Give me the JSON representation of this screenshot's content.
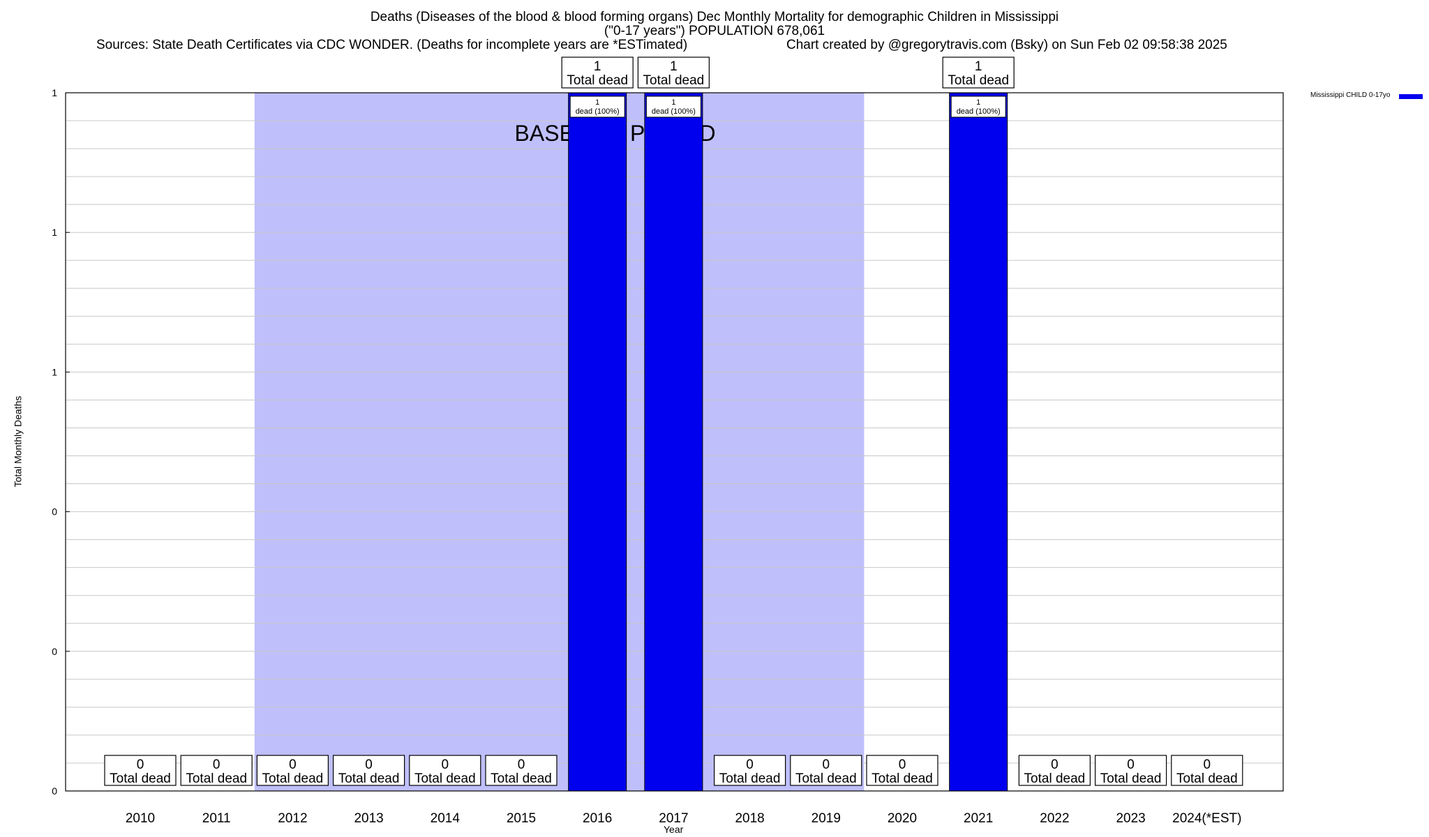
{
  "header": {
    "title_line1": "Deaths (Diseases of the blood & blood forming organs) Dec Monthly Mortality for demographic Children in Mississippi",
    "title_line2": "(\"0-17 years\") POPULATION 678,061",
    "sources": "Sources: State Death Certificates via CDC WONDER. (Deaths for incomplete years are *ESTimated)",
    "credit": "Chart created by @gregorytravis.com (Bsky) on Sun Feb 02 09:58:38 2025"
  },
  "colors": {
    "bar": "#0000ee",
    "baseline_shade": "#bfbffb",
    "grid": "#c8c8c8",
    "frame": "#000000"
  },
  "chart_data": {
    "type": "bar",
    "xlabel": "Year",
    "ylabel": "Total Monthly Deaths",
    "ylim": [
      0,
      1
    ],
    "y_tick_labels": [
      "0",
      "0",
      "0",
      "1",
      "1",
      "1"
    ],
    "grid": true,
    "legend_position": "top-right",
    "categories": [
      "2010",
      "2011",
      "2012",
      "2013",
      "2014",
      "2015",
      "2016",
      "2017",
      "2018",
      "2019",
      "2020",
      "2021",
      "2022",
      "2023",
      "2024(*EST)"
    ],
    "series": [
      {
        "name": "Mississippi CHILD 0-17yo",
        "values": [
          0,
          0,
          0,
          0,
          0,
          0,
          1,
          1,
          0,
          0,
          0,
          1,
          0,
          0,
          0
        ]
      }
    ],
    "total_dead_label": "Total dead",
    "bar_inner_labels": [
      {
        "category": "2016",
        "count": "1",
        "text": "dead (100%)"
      },
      {
        "category": "2017",
        "count": "1",
        "text": "dead (100%)"
      },
      {
        "category": "2021",
        "count": "1",
        "text": "dead (100%)"
      }
    ],
    "baseline_period": {
      "label": "BASELINE PERIOD",
      "start": "2012",
      "end": "2019"
    }
  }
}
